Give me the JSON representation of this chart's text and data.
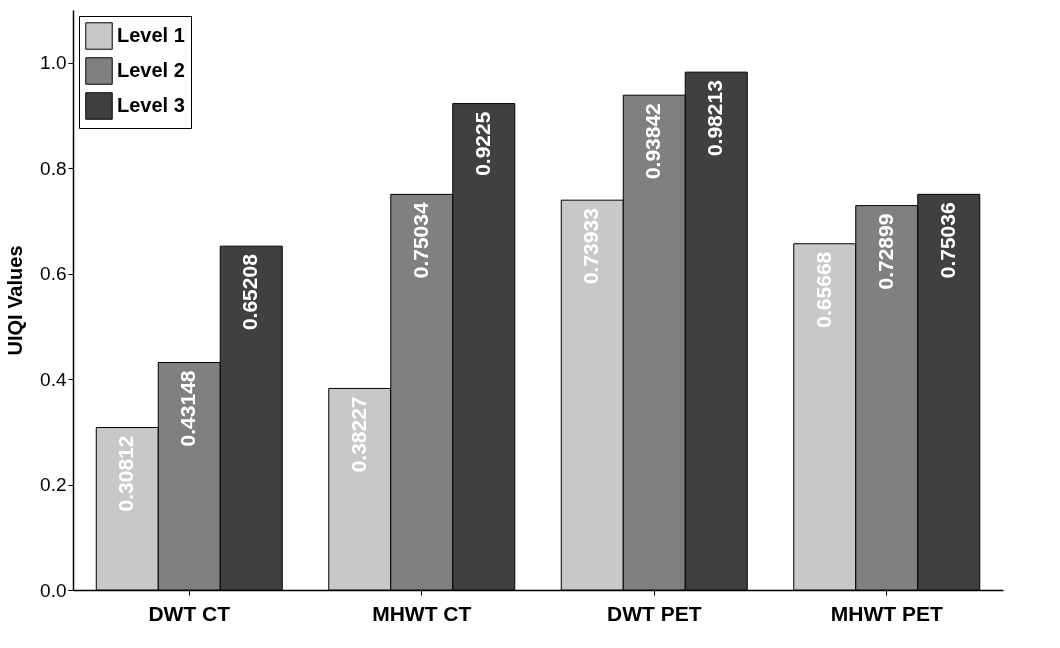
{
  "chart_data": {
    "type": "bar",
    "ylabel": "UIQI Values",
    "categories": [
      "DWT CT",
      "MHWT CT",
      "DWT PET",
      "MHWT PET"
    ],
    "series": [
      {
        "name": "Level 1",
        "color": "#c8c8c8",
        "values": [
          0.30812,
          0.38227,
          0.73933,
          0.65668
        ]
      },
      {
        "name": "Level 2",
        "color": "#808080",
        "values": [
          0.43148,
          0.75034,
          0.93842,
          0.72899
        ]
      },
      {
        "name": "Level 3",
        "color": "#404040",
        "values": [
          0.65208,
          0.9225,
          0.98213,
          0.75036
        ]
      }
    ],
    "ylim": [
      0,
      1.1
    ],
    "yticks": [
      {
        "value": 0,
        "label": "0.0"
      },
      0.2,
      0.4,
      0.6,
      0.8,
      {
        "value": 1,
        "label": "1.0"
      }
    ],
    "data_labels": true,
    "legend": "top left"
  }
}
